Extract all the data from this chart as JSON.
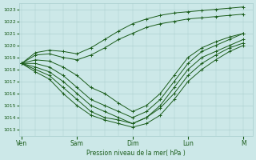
{
  "title": "Pression niveau de la mer( hPa )",
  "bg_color": "#cce8e8",
  "grid_color": "#a8cccc",
  "line_color": "#1a5c1a",
  "ylim": [
    1012.5,
    1023.5
  ],
  "yticks": [
    1013,
    1014,
    1015,
    1016,
    1017,
    1018,
    1019,
    1020,
    1021,
    1022,
    1023
  ],
  "day_labels": [
    "Ven",
    "Sam",
    "Dim",
    "Lun",
    "M"
  ],
  "day_positions": [
    0,
    24,
    48,
    72,
    96
  ],
  "xlim": [
    -1,
    100
  ],
  "series": [
    {
      "x": [
        0,
        6,
        12,
        18,
        24,
        30,
        36,
        42,
        48,
        54,
        60,
        66,
        72,
        78,
        84,
        90,
        96
      ],
      "y": [
        1018.5,
        1019.4,
        1019.6,
        1019.5,
        1019.3,
        1019.8,
        1020.5,
        1021.2,
        1021.8,
        1022.2,
        1022.5,
        1022.7,
        1022.8,
        1022.9,
        1023.0,
        1023.1,
        1023.2
      ]
    },
    {
      "x": [
        0,
        6,
        12,
        18,
        24,
        30,
        36,
        42,
        48,
        54,
        60,
        66,
        72,
        78,
        84,
        90,
        96
      ],
      "y": [
        1018.5,
        1019.2,
        1019.3,
        1019.0,
        1018.8,
        1019.2,
        1019.8,
        1020.5,
        1021.0,
        1021.5,
        1021.8,
        1022.0,
        1022.2,
        1022.3,
        1022.4,
        1022.5,
        1022.6
      ]
    },
    {
      "x": [
        0,
        6,
        12,
        18,
        24,
        30,
        36,
        42,
        48,
        54,
        60,
        66,
        72,
        78,
        84,
        90,
        96
      ],
      "y": [
        1018.5,
        1018.8,
        1018.7,
        1018.2,
        1017.5,
        1016.5,
        1016.0,
        1015.2,
        1014.5,
        1015.0,
        1016.0,
        1017.5,
        1019.0,
        1019.8,
        1020.3,
        1020.7,
        1021.0
      ]
    },
    {
      "x": [
        0,
        6,
        12,
        18,
        24,
        30,
        36,
        42,
        48,
        54,
        60,
        66,
        72,
        78,
        84,
        90,
        96
      ],
      "y": [
        1018.5,
        1018.5,
        1018.2,
        1017.5,
        1016.5,
        1015.5,
        1015.0,
        1014.5,
        1014.0,
        1014.5,
        1015.5,
        1017.0,
        1018.5,
        1019.5,
        1020.0,
        1020.5,
        1021.0
      ]
    },
    {
      "x": [
        0,
        6,
        12,
        18,
        24,
        30,
        36,
        42,
        48,
        54,
        60,
        66,
        72,
        78,
        84,
        90,
        96
      ],
      "y": [
        1018.5,
        1018.2,
        1017.8,
        1017.0,
        1016.0,
        1015.0,
        1014.5,
        1014.0,
        1013.5,
        1014.0,
        1015.0,
        1016.5,
        1018.0,
        1019.0,
        1019.5,
        1020.0,
        1020.5
      ]
    },
    {
      "x": [
        0,
        6,
        12,
        18,
        24,
        30,
        36,
        42,
        48,
        54,
        60,
        66,
        72,
        78,
        84,
        90,
        96
      ],
      "y": [
        1018.5,
        1018.0,
        1017.5,
        1016.5,
        1015.5,
        1014.5,
        1014.0,
        1013.8,
        1013.5,
        1014.0,
        1014.8,
        1016.0,
        1017.5,
        1018.5,
        1019.2,
        1019.8,
        1020.2
      ]
    },
    {
      "x": [
        0,
        6,
        12,
        18,
        24,
        30,
        36,
        42,
        48,
        54,
        60,
        66,
        72,
        78,
        84,
        90,
        96
      ],
      "y": [
        1018.5,
        1017.8,
        1017.2,
        1016.0,
        1015.0,
        1014.2,
        1013.8,
        1013.5,
        1013.2,
        1013.5,
        1014.2,
        1015.5,
        1017.0,
        1018.0,
        1018.8,
        1019.5,
        1020.0
      ]
    }
  ]
}
